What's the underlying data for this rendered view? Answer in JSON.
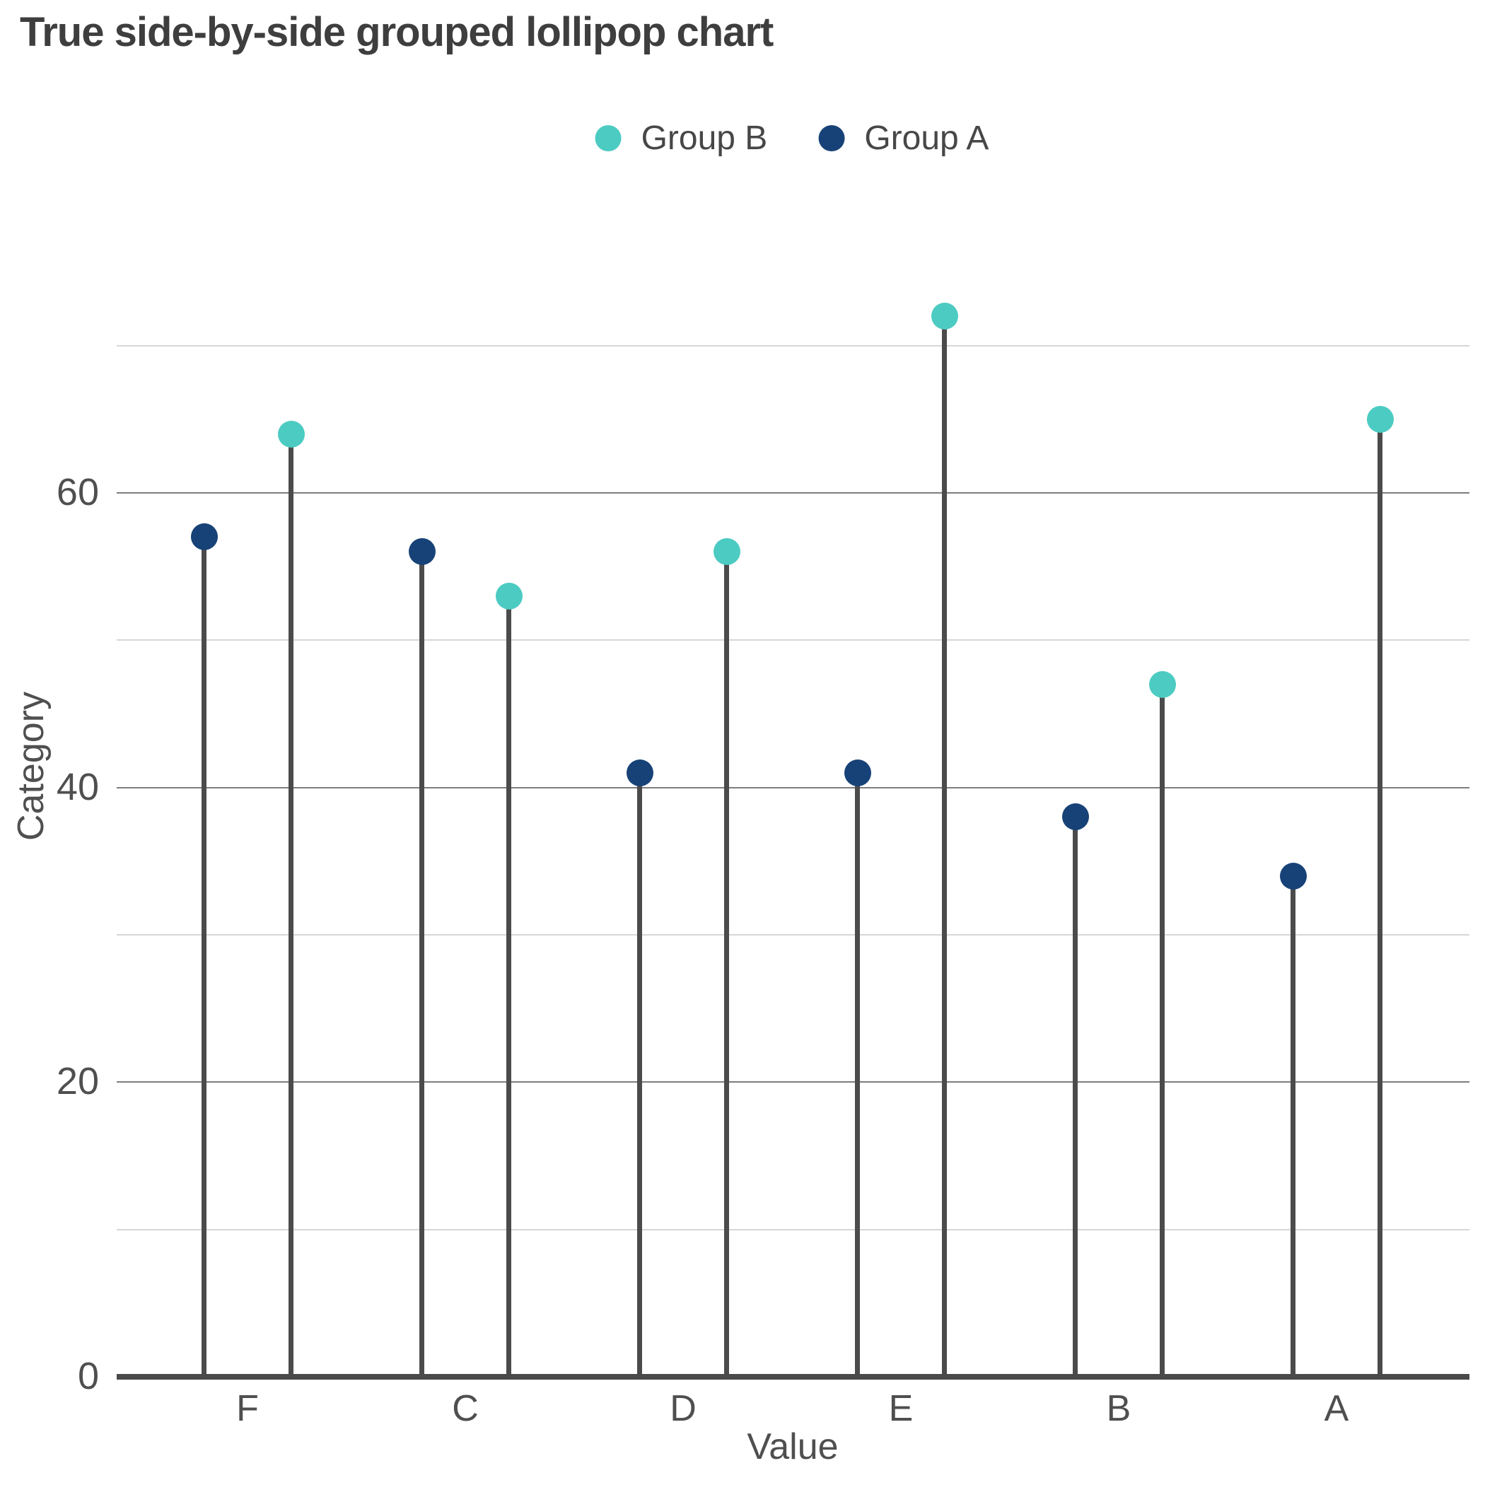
{
  "chart_data": {
    "type": "bar",
    "variant": "grouped-lollipop",
    "title": "True side-by-side grouped lollipop chart",
    "xlabel": "Value",
    "ylabel": "Category",
    "categories": [
      "F",
      "C",
      "D",
      "E",
      "B",
      "A"
    ],
    "series": [
      {
        "name": "Group B",
        "color": "#4ccbc2",
        "values": [
          64,
          53,
          56,
          72,
          47,
          65
        ]
      },
      {
        "name": "Group A",
        "color": "#174277",
        "values": [
          57,
          56,
          41,
          41,
          38,
          34
        ]
      }
    ],
    "cluster_arrangement": [
      "Group A",
      "Group B"
    ],
    "ylim": [
      0,
      73
    ],
    "yticks": [
      0,
      20,
      40,
      60
    ],
    "major_gridlines": [
      20,
      40,
      60
    ],
    "minor_gridlines": [
      10,
      30,
      50,
      70
    ],
    "grid": "horizontal",
    "legend_position": "top-center",
    "colors": {
      "group_b": "#4ccbc2",
      "group_a": "#174277",
      "stem": "#4b4b4b",
      "axis": "#4a4a4a",
      "title_text": "#3e3e3e",
      "tick_text": "#4f4f4f",
      "major_grid": "#7d7d7d",
      "minor_grid": "#d6d6d6"
    }
  }
}
